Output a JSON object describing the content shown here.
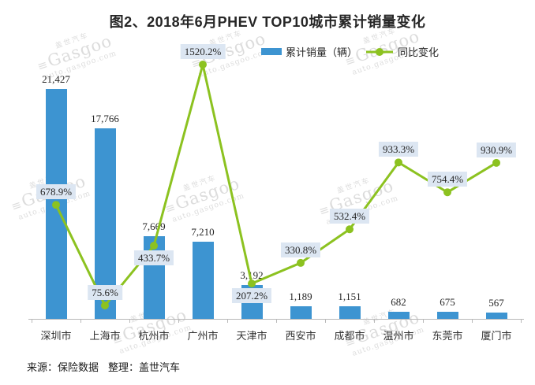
{
  "chart": {
    "title_color": "#262626"
  },
  "chart_data": {
    "type": "bar+line",
    "title": "图2、2018年6月PHEV TOP10城市累计销量变化",
    "categories": [
      "深圳市",
      "上海市",
      "杭州市",
      "广州市",
      "天津市",
      "西安市",
      "成都市",
      "温州市",
      "东莞市",
      "厦门市"
    ],
    "series": [
      {
        "name": "累计销量（辆）",
        "type": "bar",
        "axis": "left",
        "values": [
          21427,
          17766,
          7669,
          7210,
          3192,
          1189,
          1151,
          682,
          675,
          567
        ],
        "labels": [
          "21,427",
          "17,766",
          "7,669",
          "7,210",
          "3,192",
          "1,189",
          "1,151",
          "682",
          "675",
          "567"
        ]
      },
      {
        "name": "同比变化",
        "type": "line",
        "axis": "right",
        "values": [
          678.9,
          75.6,
          433.7,
          1520.2,
          207.2,
          330.8,
          532.4,
          933.3,
          754.4,
          930.9
        ],
        "labels": [
          "678.9%",
          "75.6%",
          "433.7%",
          "1520.2%",
          "207.2%",
          "330.8%",
          "532.4%",
          "933.3%",
          "754.4%",
          "930.9%"
        ],
        "label_side": [
          "above",
          "above",
          "below",
          "above",
          "below",
          "above",
          "above",
          "above",
          "above",
          "above"
        ]
      }
    ],
    "legend_position": "top",
    "grid": false,
    "axes_visible": {
      "x": true,
      "y_left": false,
      "y_right": false
    }
  },
  "footer": {
    "source_label": "来源：",
    "source": "保险数据",
    "editor_label": "整理：",
    "editor": "盖世汽车"
  },
  "watermark": {
    "cn": "盖世汽车",
    "mark": "≡",
    "name": "Gasgoo",
    "url": "auto.gasgoo.com"
  },
  "colors": {
    "bar": "#3d94d1",
    "line": "#8cc220",
    "percent_label_bg": "#dce6f2",
    "axis": "#b9b9b9",
    "watermark": "#d7d7d7",
    "text": "#262626"
  }
}
